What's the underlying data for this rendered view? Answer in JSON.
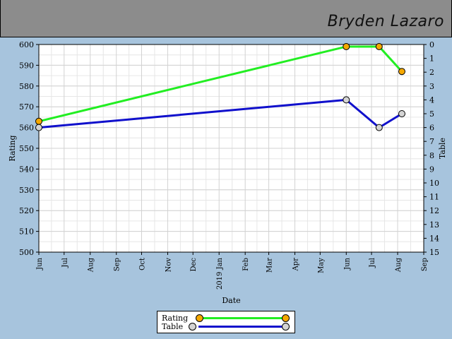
{
  "header": {
    "player_name": "Bryden Lazaro"
  },
  "chart_data": {
    "type": "line",
    "xlabel": "Date",
    "ylabel": "Rating",
    "y2label": "Table",
    "x_ticks": [
      "Jun",
      "Jul",
      "Aug",
      "Sep",
      "Oct",
      "Nov",
      "Dec",
      "2019 Jan",
      "Feb",
      "Mar",
      "Apr",
      "May",
      "Jun",
      "Jul",
      "Aug",
      "Sep"
    ],
    "x_range": [
      "2018-06-01",
      "2019-09-01"
    ],
    "ylim": [
      500,
      600
    ],
    "y_ticks": [
      500,
      510,
      520,
      530,
      540,
      550,
      560,
      570,
      580,
      590,
      600
    ],
    "y2lim": [
      15,
      0
    ],
    "y2_ticks": [
      0,
      1,
      2,
      3,
      4,
      5,
      6,
      7,
      8,
      9,
      10,
      11,
      12,
      13,
      14,
      15
    ],
    "grid": true,
    "legend": "bottom-center",
    "series": [
      {
        "name": "Rating",
        "axis": "left",
        "color": "#22ee22",
        "marker_color": "#f5a800",
        "x": [
          "2018-06-01",
          "2019-06-01",
          "2019-07-10",
          "2019-08-06"
        ],
        "y": [
          563,
          599,
          599,
          587
        ]
      },
      {
        "name": "Table",
        "axis": "right",
        "color": "#1010cc",
        "marker_color": "#d4d4d4",
        "x": [
          "2018-06-01",
          "2019-06-01",
          "2019-07-10",
          "2019-08-06"
        ],
        "y": [
          6,
          4,
          6,
          5
        ]
      }
    ]
  }
}
